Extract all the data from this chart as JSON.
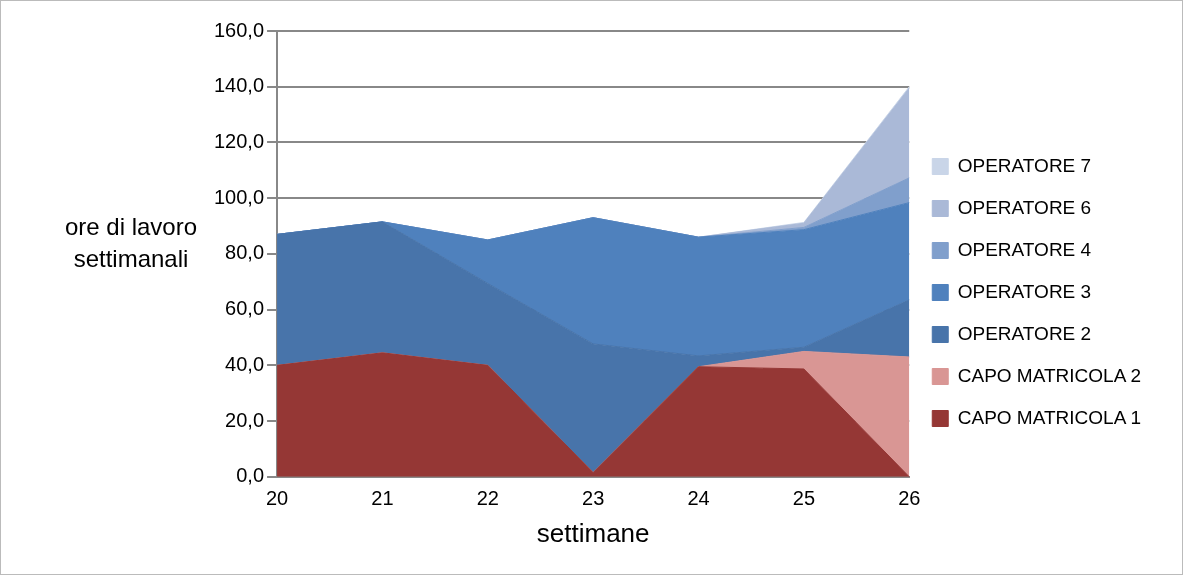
{
  "chart_data": {
    "type": "area",
    "xlabel": "settimane",
    "ylabel": "ore di lavoro settimanali",
    "categories": [
      "20",
      "21",
      "22",
      "23",
      "24",
      "25",
      "26"
    ],
    "stacked": true,
    "series": [
      {
        "name": "CAPO MATRICOLA 1",
        "color": "#953735",
        "values": [
          40,
          44.5,
          40,
          1.5,
          39.5,
          38.7,
          0
        ]
      },
      {
        "name": "CAPO MATRICOLA 2",
        "color": "#d99694",
        "values": [
          0,
          0,
          0,
          0,
          0,
          6.3,
          43
        ]
      },
      {
        "name": "OPERATORE 2",
        "color": "#4874aa",
        "values": [
          47,
          47,
          29.4,
          46.2,
          3.9,
          1.5,
          20.5
        ]
      },
      {
        "name": "OPERATORE 3",
        "color": "#4f81bd",
        "values": [
          0,
          0,
          15.6,
          45.3,
          42.6,
          42.2,
          34.9
        ]
      },
      {
        "name": "OPERATORE 4",
        "color": "#809fcc",
        "values": [
          0,
          0,
          0,
          0,
          0,
          0.8,
          8.9
        ]
      },
      {
        "name": "OPERATORE 6",
        "color": "#aab9d7",
        "values": [
          0,
          0,
          0,
          0,
          0,
          1.5,
          32.2
        ]
      },
      {
        "name": "OPERATORE 7",
        "color": "#c9d5e8",
        "values": [
          0,
          0,
          0,
          0,
          0,
          0.3,
          0.5
        ]
      }
    ],
    "ylim": [
      0,
      160
    ],
    "yticks": [
      {
        "value": 0,
        "label": "0,0"
      },
      {
        "value": 20,
        "label": "20,0"
      },
      {
        "value": 40,
        "label": "40,0"
      },
      {
        "value": 60,
        "label": "60,0"
      },
      {
        "value": 80,
        "label": "80,0"
      },
      {
        "value": 100,
        "label": "100,0"
      },
      {
        "value": 120,
        "label": "120,0"
      },
      {
        "value": 140,
        "label": "140,0"
      },
      {
        "value": 160,
        "label": "160,0"
      }
    ],
    "grid": "y",
    "legend": "right",
    "marker": "none"
  }
}
